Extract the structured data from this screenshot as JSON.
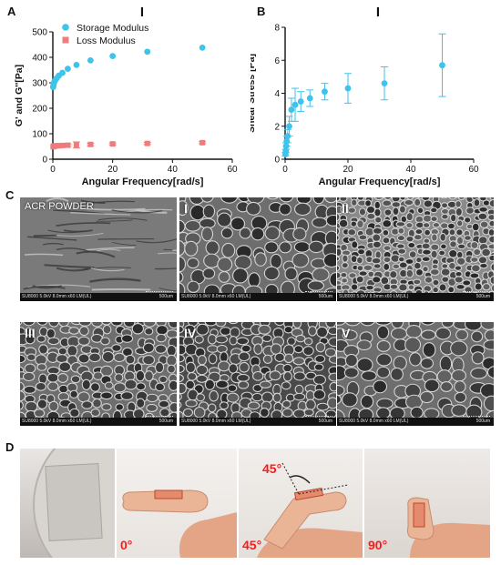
{
  "panels": {
    "A": "A",
    "B": "B",
    "C": "C",
    "D": "D"
  },
  "chart_data": [
    {
      "type": "scatter",
      "title": "I",
      "xlabel": "Angular Frequency[rad/s]",
      "ylabel": "G' and G''[Pa]",
      "xlim": [
        0,
        60
      ],
      "ylim": [
        0,
        500
      ],
      "xticks": [
        "0",
        "20",
        "40",
        "60"
      ],
      "yticks": [
        "0",
        "100",
        "200",
        "300",
        "400",
        "500"
      ],
      "legend": "top-right",
      "series": [
        {
          "name": "Storage Modulus",
          "color": "#3ec3ea",
          "marker": "circle",
          "x": [
            0.1,
            0.2,
            0.3,
            0.5,
            0.8,
            1.3,
            2.0,
            3.2,
            5.0,
            7.9,
            12.6,
            20.0,
            31.6,
            50.0
          ],
          "y": [
            283,
            290,
            297,
            304,
            310,
            318,
            328,
            339,
            355,
            370,
            388,
            405,
            422,
            438
          ],
          "err": [
            0,
            0,
            0,
            0,
            0,
            0,
            0,
            0,
            0,
            0,
            0,
            0,
            0,
            0
          ]
        },
        {
          "name": "Loss Modulus",
          "color": "#f07b7b",
          "marker": "square",
          "x": [
            0.1,
            0.2,
            0.3,
            0.5,
            0.8,
            1.3,
            2.0,
            3.2,
            5.0,
            7.9,
            12.6,
            20.0,
            31.6,
            50.0
          ],
          "y": [
            49,
            50,
            51,
            51,
            52,
            53,
            53,
            54,
            55,
            56,
            58,
            60,
            62,
            65
          ],
          "err": [
            0,
            0,
            0,
            0,
            0,
            0,
            0,
            5,
            5,
            12,
            5,
            4,
            4,
            4
          ]
        }
      ]
    },
    {
      "type": "scatter",
      "title": "I",
      "xlabel": "Angular Frequency[rad/s]",
      "ylabel": "Shear Stress [Pa]",
      "xlim": [
        0,
        60
      ],
      "ylim": [
        0,
        8
      ],
      "xticks": [
        "0",
        "20",
        "40",
        "60"
      ],
      "yticks": [
        "0",
        "2",
        "4",
        "6",
        "8"
      ],
      "series": [
        {
          "name": "",
          "color": "#3ec3ea",
          "marker": "circle",
          "x": [
            0.1,
            0.2,
            0.3,
            0.5,
            0.8,
            1.3,
            2.0,
            3.2,
            5.0,
            7.9,
            12.6,
            20.0,
            31.6,
            50.0
          ],
          "y": [
            0.3,
            0.5,
            0.8,
            1.1,
            1.4,
            2.0,
            3.0,
            3.3,
            3.5,
            3.7,
            4.1,
            4.3,
            4.6,
            5.7
          ],
          "err": [
            0.1,
            0.1,
            0.2,
            0.3,
            0.4,
            0.6,
            0.7,
            1.0,
            0.6,
            0.5,
            0.5,
            0.9,
            1.0,
            1.9
          ]
        }
      ]
    }
  ],
  "sem_images": [
    {
      "label": "ACR POWDER",
      "info": "SU8000 5.0kV 8.0mm x60 LM(UL)",
      "scale": "500um",
      "style": "flat"
    },
    {
      "label": "I",
      "info": "SU8000 5.0kV 8.0mm x60 LM(UL)",
      "scale": "500um",
      "style": "cells-large"
    },
    {
      "label": "II",
      "info": "SU8000 5.0kV 8.0mm x60 LM(UL)",
      "scale": "500um",
      "style": "cells-fine"
    },
    {
      "label": "III",
      "info": "SU8000 5.0kV 8.0mm x60 LM(UL)",
      "scale": "500um",
      "style": "cells-rough"
    },
    {
      "label": "IV",
      "info": "SU8000 5.0kV 8.0mm x60 LM(UL)",
      "scale": "500um",
      "style": "cells-dark"
    },
    {
      "label": "V",
      "info": "SU8000 5.0kV 8.0mm x60 LM(UL)",
      "scale": "500um",
      "style": "cells-large"
    }
  ],
  "photos": {
    "angles": [
      "0°",
      "45°",
      "90°"
    ],
    "annotation": "45°"
  }
}
